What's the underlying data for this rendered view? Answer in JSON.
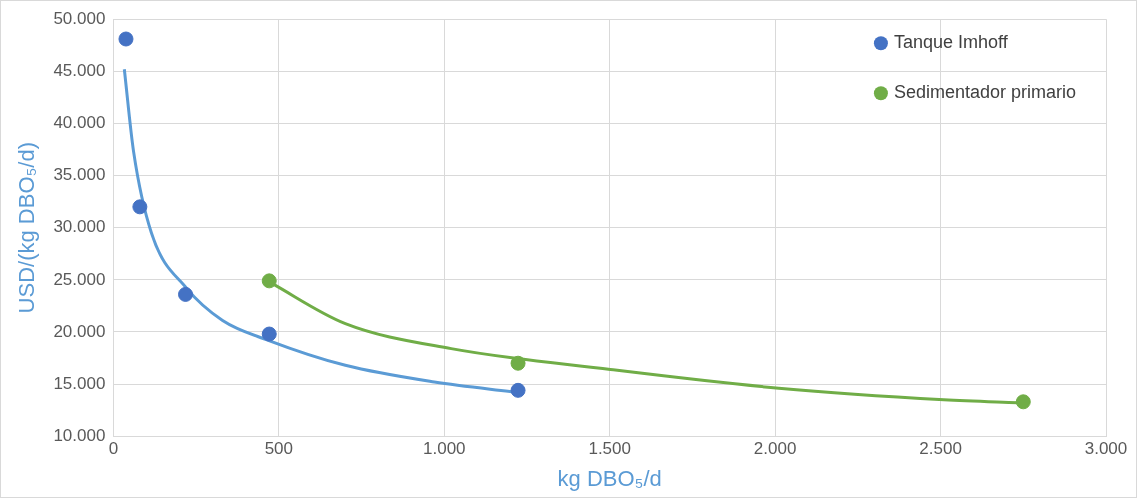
{
  "chart_data": {
    "type": "scatter",
    "xlabel": "kg DBO₅/d",
    "ylabel": "USD/(kg DBO₅/d)",
    "xlim": [
      0,
      3000
    ],
    "xticks": [
      0,
      500,
      {
        "value": 1000,
        "label": "1.000"
      },
      {
        "value": 1500,
        "label": "1.500"
      },
      {
        "value": 2000,
        "label": "2.000"
      },
      {
        "value": 2500,
        "label": "2.500"
      },
      {
        "value": 3000,
        "label": "3.000"
      }
    ],
    "ylim": [
      10000,
      50000
    ],
    "yticks": [
      {
        "value": 10000,
        "label": "10.000"
      },
      {
        "value": 15000,
        "label": "15.000"
      },
      {
        "value": 20000,
        "label": "20.000"
      },
      {
        "value": 25000,
        "label": "25.000"
      },
      {
        "value": 30000,
        "label": "30.000"
      },
      {
        "value": 35000,
        "label": "35.000"
      },
      {
        "value": 40000,
        "label": "40.000"
      },
      {
        "value": 45000,
        "label": "45.000"
      },
      {
        "value": 50000,
        "label": "50.000"
      }
    ],
    "grid": true,
    "legend": "top right",
    "marker": "circle",
    "series": [
      {
        "name": "Tanque Imhoff",
        "type": "scatter",
        "color": "#4472c4",
        "x": [
          38,
          80,
          218,
          471,
          1223
        ],
        "values": [
          48100,
          32000,
          23600,
          19800,
          14400
        ]
      },
      {
        "name": "Sedimentador primario",
        "type": "scatter",
        "color": "#70ad47",
        "x": [
          471,
          1223,
          2750
        ],
        "values": [
          24900,
          17000,
          13300
        ]
      },
      {
        "type": "line",
        "color": "#5b9bd5",
        "marker": "none",
        "x": [
          33,
          61,
          115,
          221,
          330,
          468,
          701,
          970,
          1223
        ],
        "values": [
          45200,
          37300,
          29500,
          24200,
          21100,
          19200,
          16800,
          15200,
          14200
        ]
      },
      {
        "type": "line",
        "color": "#70ad47",
        "marker": "none",
        "x": [
          471,
          701,
          1021,
          1502,
          2011,
          2510,
          2750
        ],
        "values": [
          24800,
          20800,
          18400,
          16400,
          14600,
          13500,
          13200
        ]
      }
    ]
  }
}
